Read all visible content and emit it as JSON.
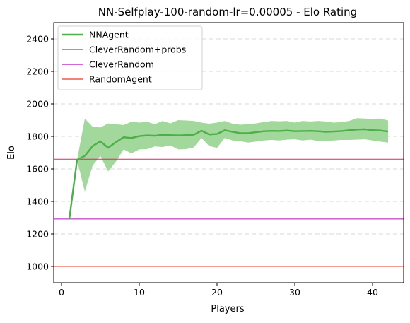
{
  "chart_data": {
    "type": "line",
    "title": "NN-Selfplay-100-random-lr=0.00005 - Elo Rating",
    "xlabel": "Players",
    "ylabel": "Elo",
    "xlim": [
      -1,
      44
    ],
    "ylim": [
      900,
      2500
    ],
    "xticks": [
      0,
      10,
      20,
      30,
      40
    ],
    "yticks": [
      1000,
      1200,
      1400,
      1600,
      1800,
      2000,
      2200,
      2400
    ],
    "grid": {
      "x": false,
      "y": true,
      "style": "dashed"
    },
    "legend_position": "top-left",
    "series": [
      {
        "name": "NNAgent",
        "kind": "line_with_band",
        "color": "#4daf4a",
        "band_color": "#a3d89c",
        "x": [
          1,
          2,
          3,
          4,
          5,
          6,
          7,
          8,
          9,
          10,
          11,
          12,
          13,
          14,
          15,
          16,
          17,
          18,
          19,
          20,
          21,
          22,
          23,
          24,
          25,
          26,
          27,
          28,
          29,
          30,
          31,
          32,
          33,
          34,
          35,
          36,
          37,
          38,
          39,
          40,
          41,
          42
        ],
        "y": [
          1290,
          1655,
          1680,
          1740,
          1770,
          1730,
          1765,
          1795,
          1790,
          1802,
          1806,
          1804,
          1810,
          1808,
          1806,
          1808,
          1810,
          1835,
          1812,
          1815,
          1838,
          1828,
          1820,
          1820,
          1826,
          1832,
          1834,
          1833,
          1836,
          1832,
          1833,
          1834,
          1832,
          1828,
          1830,
          1833,
          1838,
          1842,
          1844,
          1838,
          1836,
          1830
        ],
        "lower": [
          1290,
          1655,
          1460,
          1620,
          1680,
          1585,
          1645,
          1720,
          1695,
          1720,
          1722,
          1738,
          1735,
          1745,
          1720,
          1722,
          1732,
          1790,
          1740,
          1730,
          1790,
          1775,
          1770,
          1762,
          1768,
          1775,
          1778,
          1775,
          1780,
          1782,
          1775,
          1780,
          1772,
          1770,
          1775,
          1778,
          1778,
          1780,
          1782,
          1775,
          1768,
          1762
        ],
        "upper": [
          1290,
          1655,
          1910,
          1860,
          1855,
          1880,
          1875,
          1870,
          1890,
          1885,
          1890,
          1875,
          1895,
          1880,
          1900,
          1898,
          1895,
          1885,
          1878,
          1885,
          1895,
          1878,
          1872,
          1876,
          1880,
          1888,
          1895,
          1893,
          1895,
          1885,
          1895,
          1892,
          1895,
          1892,
          1885,
          1888,
          1895,
          1912,
          1910,
          1908,
          1910,
          1898
        ]
      },
      {
        "name": "CleverRandom+probs",
        "kind": "hline",
        "color": "#e0235f",
        "y": 1660
      },
      {
        "name": "CleverRandom",
        "kind": "hline",
        "color": "#b30fc2",
        "y": 1292
      },
      {
        "name": "RandomAgent",
        "kind": "hline",
        "color": "#e8392a",
        "y": 1000
      }
    ]
  }
}
